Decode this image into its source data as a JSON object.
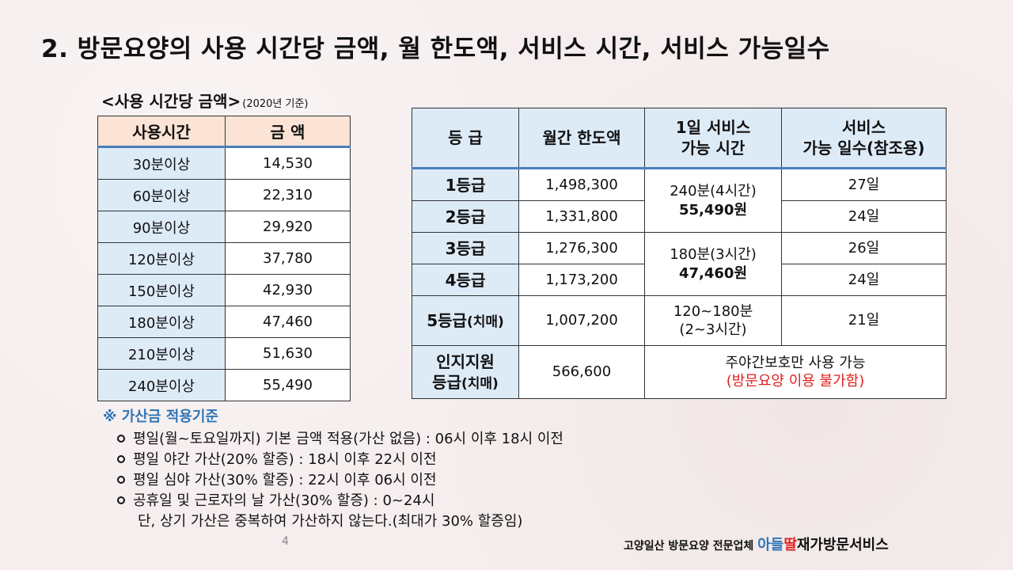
{
  "title": "2. 방문요양의 사용 시간당 금액, 월 한도액, 서비스 시간, 서비스 가능일수",
  "hourly": {
    "header": "<사용 시간당 금액>",
    "year_note": "(2020년 기준)",
    "columns": [
      "사용시간",
      "금 액"
    ],
    "rows": [
      [
        "30분이상",
        "14,530"
      ],
      [
        "60분이상",
        "22,310"
      ],
      [
        "90분이상",
        "29,920"
      ],
      [
        "120분이상",
        "37,780"
      ],
      [
        "150분이상",
        "42,930"
      ],
      [
        "180분이상",
        "47,460"
      ],
      [
        "210분이상",
        "51,630"
      ],
      [
        "240분이상",
        "55,490"
      ]
    ]
  },
  "grades": {
    "columns": [
      "등 급",
      "월간 한도액",
      "1일 서비스",
      "가능 시간",
      "서비스",
      "가능 일수(참조용)"
    ],
    "rows": [
      {
        "grade": "1등급",
        "limit": "1,498,300",
        "days": "27일"
      },
      {
        "grade": "2등급",
        "limit": "1,331,800",
        "days": "24일"
      },
      {
        "grade": "3등급",
        "limit": "1,276,300",
        "days": "26일"
      },
      {
        "grade": "4등급",
        "limit": "1,173,200",
        "days": "24일"
      },
      {
        "grade_main": "5등급",
        "grade_sub": "(치매)",
        "limit": "1,007,200",
        "days": "21일"
      },
      {
        "grade_line1": "인지지원",
        "grade_main": "등급",
        "grade_sub": "(치매)",
        "limit": "566,600"
      }
    ],
    "time_12": {
      "line1": "240분(4시간)",
      "line2": "55,490원"
    },
    "time_34": {
      "line1": "180분(3시간)",
      "line2": "47,460원"
    },
    "time_5": {
      "line1": "120~180분",
      "line2": "(2~3시간)"
    },
    "cognitive_note": {
      "line1": "주야간보호만 사용 가능",
      "line2_open": "(",
      "line2_red": "방문요양 이용 불가함",
      "line2_close": ")"
    }
  },
  "notes": {
    "header": "※ 가산금 적용기준",
    "items": [
      "평일(월~토요일까지) 기본 금액 적용(가산 없음) : 06시 이후 18시 이전",
      "평일 야간 가산(20% 할증) : 18시 이후 22시 이전",
      "평일 심야 가산(30% 할증) : 22시 이후 06시 이전",
      "공휴일 및 근로자의 날 가산(30% 할증)  : 0~24시"
    ],
    "continuation": "단, 상기 가산은 중복하여 가산하지 않는다.(최대가 30% 할증임)"
  },
  "page_number": "4",
  "footer": {
    "prefix": "고양일산 방문요양 전문업체 ",
    "brand1": "아들",
    "brand2": "딸",
    "brand3": "재가방문서비스"
  }
}
